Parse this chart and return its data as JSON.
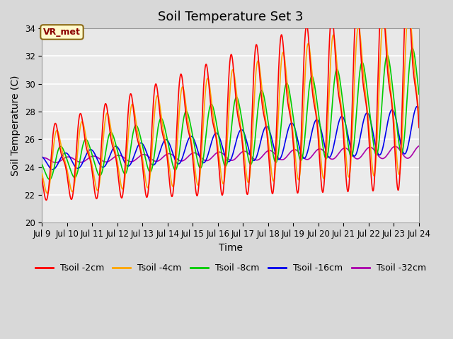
{
  "title": "Soil Temperature Set 3",
  "xlabel": "Time",
  "ylabel": "Soil Temperature (C)",
  "xlim_days": [
    9,
    24
  ],
  "ylim": [
    20,
    34
  ],
  "yticks": [
    20,
    22,
    24,
    26,
    28,
    30,
    32,
    34
  ],
  "xtick_days": [
    9,
    10,
    11,
    12,
    13,
    14,
    15,
    16,
    17,
    18,
    19,
    20,
    21,
    22,
    23,
    24
  ],
  "annotation_text": "VR_met",
  "annotation_color": "#8B0000",
  "annotation_bg": "#FFFACD",
  "annotation_border": "#8B6914",
  "series": {
    "Tsoil -2cm": {
      "color": "#FF0000",
      "lw": 1.2
    },
    "Tsoil -4cm": {
      "color": "#FFA500",
      "lw": 1.2
    },
    "Tsoil -8cm": {
      "color": "#00CC00",
      "lw": 1.2
    },
    "Tsoil -16cm": {
      "color": "#0000EE",
      "lw": 1.2
    },
    "Tsoil -32cm": {
      "color": "#AA00AA",
      "lw": 1.2
    }
  },
  "bg_color": "#D8D8D8",
  "plot_bg_light": "#EBEBEB",
  "plot_bg_dark": "#DCDCDC",
  "title_fontsize": 13,
  "axis_fontsize": 10,
  "tick_fontsize": 8.5,
  "legend_fontsize": 9
}
